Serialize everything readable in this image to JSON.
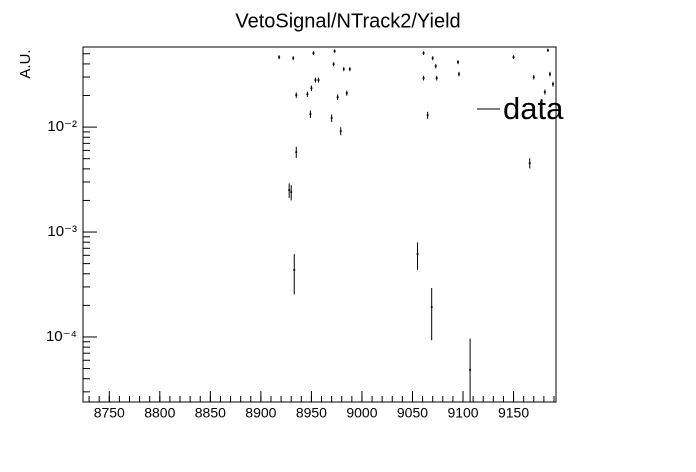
{
  "chart_data": {
    "type": "scatter",
    "title": "VetoSignal/NTrack2/Yield",
    "y_label": "A.U.",
    "log_y": true,
    "legend_position": "top-right",
    "xlim": [
      8724,
      9192
    ],
    "ylim": [
      2.4e-05,
      0.058
    ],
    "xticks": [
      8750,
      8800,
      8850,
      8900,
      8950,
      9000,
      9050,
      9100,
      9150
    ],
    "yticks": [
      {
        "value": 0.0001,
        "label": "10⁻⁴"
      },
      {
        "value": 0.001,
        "label": "10⁻³"
      },
      {
        "value": 0.01,
        "label": "10⁻²"
      }
    ],
    "series": [
      {
        "name": "data",
        "color": "#000000",
        "x": [
          8918,
          8932,
          8935,
          8946,
          8949,
          8950,
          8952,
          8954,
          8957,
          8970,
          8972,
          8973,
          8976,
          8979,
          8982,
          8985,
          8988,
          8935,
          8928,
          8930,
          8933,
          9055,
          9061,
          9061,
          9065,
          9069,
          9070,
          9073,
          9074,
          9095,
          9096,
          9107,
          9150,
          9166,
          9170,
          9181,
          9184,
          9186,
          9189
        ],
        "values": [
          0.0464,
          0.0454,
          0.0202,
          0.0206,
          0.0133,
          0.0235,
          0.0507,
          0.0281,
          0.0281,
          0.0122,
          0.0398,
          0.053,
          0.0193,
          0.00916,
          0.0357,
          0.0211,
          0.0357,
          0.00578,
          0.00251,
          0.0024,
          0.000435,
          0.000617,
          0.0507,
          0.0293,
          0.013,
          0.000193,
          0.0454,
          0.0381,
          0.0293,
          0.0416,
          0.032,
          4.85e-05,
          0.0464,
          0.00454,
          0.0299,
          0.0216,
          0.054,
          0.032,
          0.0257
        ],
        "errors": [
          0.002,
          0.002,
          0.0012,
          0.0012,
          0.0011,
          0.0014,
          0.002,
          0.0015,
          0.0015,
          0.001,
          0.0018,
          0.002,
          0.0012,
          0.0008,
          0.0016,
          0.0012,
          0.0016,
          0.0007,
          0.0004,
          0.0004,
          0.00018,
          0.00018,
          0.002,
          0.0015,
          0.001,
          0.0001,
          0.002,
          0.0018,
          0.0015,
          0.0018,
          0.0016,
          4.8e-05,
          0.002,
          0.0005,
          0.0015,
          0.0012,
          0.002,
          0.0016,
          0.0014
        ]
      }
    ]
  }
}
